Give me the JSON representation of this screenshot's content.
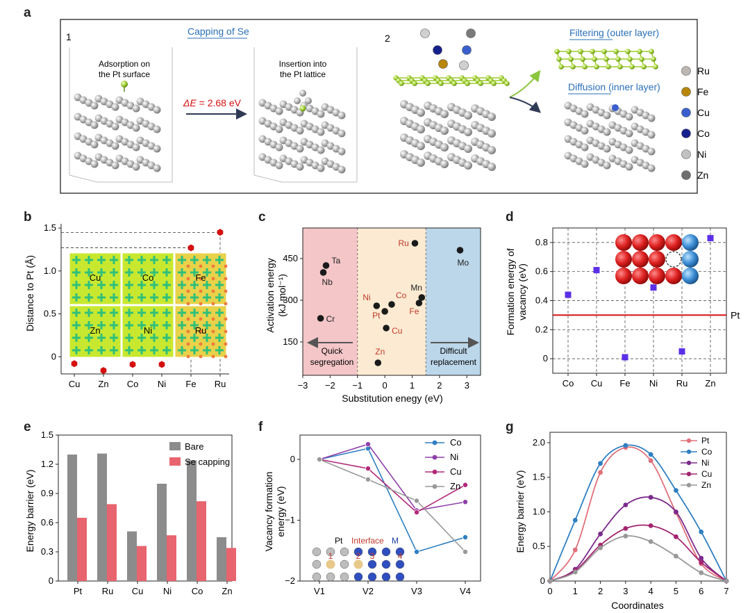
{
  "panel_labels": {
    "a": "a",
    "b": "b",
    "c": "c",
    "d": "d",
    "e": "e",
    "f": "f",
    "g": "g"
  },
  "panel_a": {
    "step1": "1",
    "capping_title": "Capping of Se",
    "adsorption_line1": "Adsorption on",
    "adsorption_line2": "the Pt surface",
    "insertion_line1": "Insertion into",
    "insertion_line2": "the Pt lattice",
    "delta_e_symbol": "ΔE",
    "delta_e_value": " = 2.68 eV",
    "step2": "2",
    "filtering": "Filtering (outer layer)",
    "diffusion": "Diffusion (inner layer)",
    "legend": [
      {
        "name": "Ru",
        "color": "#bdb7b3"
      },
      {
        "name": "Fe",
        "color": "#b8860b"
      },
      {
        "name": "Cu",
        "color": "#3a5fcd"
      },
      {
        "name": "Co",
        "color": "#16208c"
      },
      {
        "name": "Ni",
        "color": "#c2c2c2"
      },
      {
        "name": "Zn",
        "color": "#6e6e6e"
      }
    ]
  },
  "chart_data": [
    {
      "panel": "b",
      "type": "scatter",
      "title": "",
      "xlabel": "",
      "ylabel": "Distance to Pt (Å)",
      "categories": [
        "Cu",
        "Zn",
        "Co",
        "Ni",
        "Fe",
        "Ru"
      ],
      "values": [
        -0.08,
        -0.16,
        -0.09,
        -0.09,
        1.27,
        1.45
      ],
      "ylim": [
        -0.2,
        1.55
      ],
      "yticks": [
        0,
        0.5,
        1.0,
        1.5
      ],
      "ytick_labels": [
        "0",
        "0.5",
        "1.0",
        "1.5"
      ],
      "map_labels": [
        "Cu",
        "Co",
        "Fe",
        "Zn",
        "Ni",
        "Ru"
      ],
      "marker_color": "#d41010"
    },
    {
      "panel": "c",
      "type": "scatter",
      "xlabel": "Substitution enegy (eV)",
      "ylabel_line1": "Activation energy",
      "ylabel_line2": "(kJ mol⁻¹)",
      "xlim": [
        -3,
        3.5
      ],
      "ylim": [
        30,
        560
      ],
      "xticks": [
        -3,
        -2,
        -1,
        0,
        1,
        2,
        3
      ],
      "xtick_labels": [
        "−3",
        "−2",
        "−1",
        "0",
        "1",
        "2",
        "3"
      ],
      "yticks": [
        150,
        300,
        450
      ],
      "ytick_labels": [
        "150",
        "300",
        "450"
      ],
      "points": [
        {
          "label": "Ta",
          "x": -2.15,
          "y": 425,
          "color": "#222222"
        },
        {
          "label": "Nb",
          "x": -2.25,
          "y": 400,
          "color": "#222222"
        },
        {
          "label": "Cr",
          "x": -2.35,
          "y": 235,
          "color": "#222222"
        },
        {
          "label": "Ni",
          "x": -0.3,
          "y": 280,
          "color": "#c0392b"
        },
        {
          "label": "Co",
          "x": 0.25,
          "y": 285,
          "color": "#c0392b"
        },
        {
          "label": "Pt",
          "x": 0.0,
          "y": 260,
          "color": "#c0392b"
        },
        {
          "label": "Cu",
          "x": 0.05,
          "y": 200,
          "color": "#c0392b"
        },
        {
          "label": "Zn",
          "x": -0.25,
          "y": 75,
          "color": "#c0392b"
        },
        {
          "label": "Ru",
          "x": 1.1,
          "y": 505,
          "color": "#c0392b"
        },
        {
          "label": "Mn",
          "x": 1.35,
          "y": 310,
          "color": "#222222"
        },
        {
          "label": "Fe",
          "x": 1.25,
          "y": 290,
          "color": "#c0392b"
        },
        {
          "label": "Mo",
          "x": 2.75,
          "y": 480,
          "color": "#222222"
        }
      ],
      "regions": [
        {
          "from": -3,
          "to": -1,
          "color": "#f4c6c8"
        },
        {
          "from": -1,
          "to": 1.5,
          "color": "#fcebd2"
        },
        {
          "from": 1.5,
          "to": 3.5,
          "color": "#bcd6ea"
        }
      ],
      "quick_line1": "Quick",
      "quick_line2": "segregation",
      "difficult_line1": "Difficult",
      "difficult_line2": "replacement"
    },
    {
      "panel": "d",
      "type": "scatter",
      "xlabel": "",
      "ylabel_line1": "Formation energy of",
      "ylabel_line2": "vacancy (eV)",
      "categories": [
        "Co",
        "Cu",
        "Fe",
        "Ni",
        "Ru",
        "Zn"
      ],
      "values": [
        0.44,
        0.61,
        0.01,
        0.49,
        0.05,
        0.83
      ],
      "ylim": [
        -0.1,
        0.9
      ],
      "yticks": [
        0,
        0.2,
        0.4,
        0.6,
        0.8
      ],
      "ytick_labels": [
        "0",
        "0.2",
        "0.4",
        "0.6",
        "0.8"
      ],
      "reference": {
        "label": "Pt",
        "value": 0.3,
        "color": "#d41010"
      },
      "marker_color": "#5b2fe8"
    },
    {
      "panel": "e",
      "type": "bar",
      "ylabel": "Energy barrier (eV)",
      "categories": [
        "Pt",
        "Ru",
        "Cu",
        "Ni",
        "Co",
        "Zn"
      ],
      "ylim": [
        0,
        1.5
      ],
      "yticks": [
        0,
        0.3,
        0.6,
        0.9,
        1.2,
        1.5
      ],
      "ytick_labels": [
        "0",
        "0.3",
        "0.6",
        "0.9",
        "1.2",
        "1.5"
      ],
      "series": [
        {
          "name": "Bare",
          "color": "#8c8c8c",
          "values": [
            1.3,
            1.31,
            0.51,
            1.0,
            1.24,
            0.45
          ]
        },
        {
          "name": "Se capping",
          "color": "#e8646e",
          "values": [
            0.65,
            0.79,
            0.36,
            0.47,
            0.82,
            0.34
          ]
        }
      ]
    },
    {
      "panel": "f",
      "type": "line",
      "ylabel_line1": "Vacancy formation",
      "ylabel_line2": "energy (eV)",
      "categories": [
        "V1",
        "V2",
        "V3",
        "V4"
      ],
      "ylim": [
        -2,
        0.4
      ],
      "yticks": [
        -2,
        -1,
        0
      ],
      "ytick_labels": [
        "−2",
        "−1",
        "0"
      ],
      "series": [
        {
          "name": "Co",
          "color": "#2f7fc1",
          "values": [
            0,
            0.18,
            -1.52,
            -1.28
          ]
        },
        {
          "name": "Ni",
          "color": "#8e3fa9",
          "values": [
            0,
            0.25,
            -0.84,
            -0.7
          ]
        },
        {
          "name": "Cu",
          "color": "#b22a7a",
          "values": [
            0,
            -0.15,
            -0.87,
            -0.42
          ]
        },
        {
          "name": "Zn",
          "color": "#999999",
          "values": [
            0,
            -0.33,
            -0.68,
            -1.52
          ]
        }
      ],
      "inset_pt": "Pt",
      "inset_interface": "Interface",
      "inset_m": "M",
      "inset_numbers": [
        "1",
        "2",
        "3",
        "4"
      ]
    },
    {
      "panel": "g",
      "type": "line",
      "xlabel": "Coordinates",
      "ylabel": "Energy barrier (eV)",
      "x": [
        0,
        1,
        2,
        3,
        4,
        5,
        6,
        7
      ],
      "xlim": [
        0,
        7
      ],
      "ylim": [
        0,
        2.15
      ],
      "xticks": [
        0,
        1,
        2,
        3,
        4,
        5,
        6,
        7
      ],
      "xtick_labels": [
        "0",
        "1",
        "2",
        "3",
        "4",
        "5",
        "6",
        "7"
      ],
      "yticks": [
        0,
        0.5,
        1.0,
        1.5,
        2.0
      ],
      "ytick_labels": [
        "0",
        "0.5",
        "1.0",
        "1.5",
        "2.0"
      ],
      "series": [
        {
          "name": "Pt",
          "color": "#e0707a",
          "values": [
            0,
            0.45,
            1.57,
            1.93,
            1.74,
            0.99,
            0.25,
            0
          ]
        },
        {
          "name": "Co",
          "color": "#2f7fc1",
          "values": [
            0,
            0.88,
            1.7,
            1.96,
            1.83,
            1.31,
            0.71,
            0
          ]
        },
        {
          "name": "Ni",
          "color": "#7b2b8c",
          "values": [
            0,
            0.17,
            0.68,
            1.1,
            1.21,
            1.0,
            0.33,
            0
          ]
        },
        {
          "name": "Cu",
          "color": "#a3246e",
          "values": [
            0,
            0.15,
            0.52,
            0.76,
            0.8,
            0.64,
            0.27,
            0
          ]
        },
        {
          "name": "Zn",
          "color": "#999999",
          "values": [
            0,
            0.13,
            0.48,
            0.65,
            0.57,
            0.36,
            0.12,
            0
          ]
        }
      ]
    }
  ]
}
